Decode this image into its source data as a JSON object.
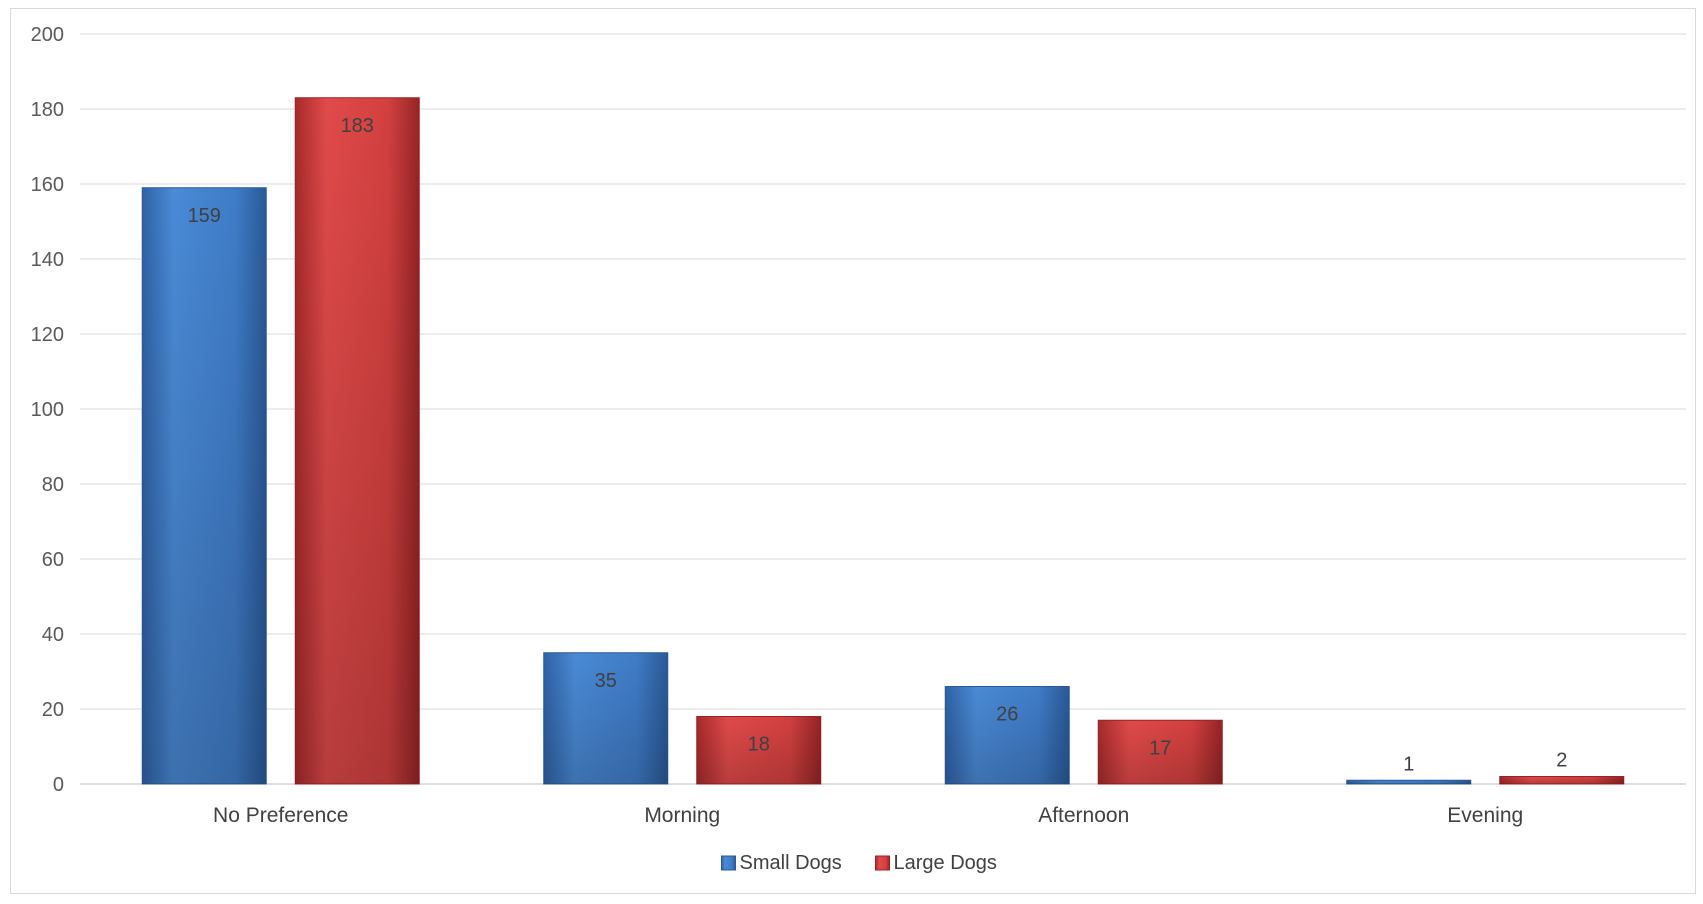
{
  "chart_data": {
    "type": "bar",
    "categories": [
      "No Preference",
      "Morning",
      "Afternoon",
      "Evening"
    ],
    "series": [
      {
        "name": "Small Dogs",
        "values": [
          159,
          35,
          26,
          1
        ],
        "color": "#3A78C4"
      },
      {
        "name": "Large Dogs",
        "values": [
          183,
          18,
          17,
          2
        ],
        "color": "#C8383A"
      }
    ],
    "ylim": [
      0,
      200
    ],
    "yticks": [
      0,
      20,
      40,
      60,
      80,
      100,
      120,
      140,
      160,
      180,
      200
    ],
    "grid": true,
    "legend": "bottom",
    "title": "",
    "xlabel": "",
    "ylabel": ""
  }
}
